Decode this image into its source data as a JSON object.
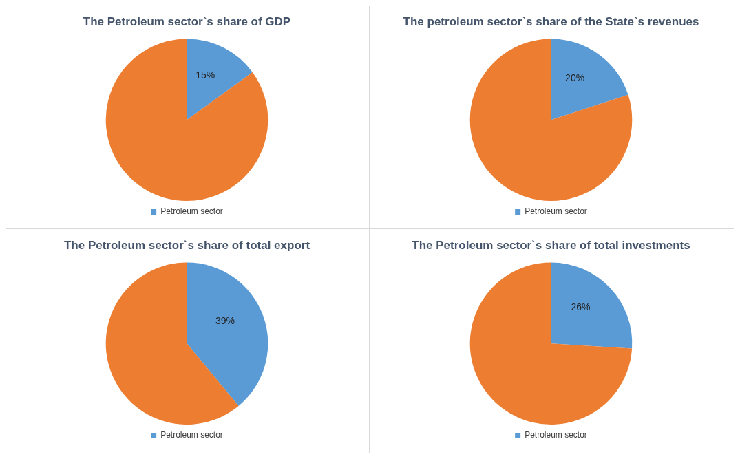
{
  "chart_data": [
    {
      "type": "pie",
      "title": "The Petroleum sector`s share of GDP",
      "categories": [
        "Petroleum sector",
        null
      ],
      "values": [
        15,
        85
      ],
      "colors": [
        "#5b9bd5",
        "#ed7d31"
      ],
      "value_labels": [
        "15%",
        null
      ],
      "legend": "bottom"
    },
    {
      "type": "pie",
      "title": "The petroleum sector`s share of the State`s revenues",
      "categories": [
        "Petroleum sector",
        null
      ],
      "values": [
        20,
        80
      ],
      "colors": [
        "#5b9bd5",
        "#ed7d31"
      ],
      "value_labels": [
        "20%",
        null
      ],
      "legend": "bottom"
    },
    {
      "type": "pie",
      "title": "The Petroleum sector`s share of total export",
      "categories": [
        "Petroleum sector",
        null
      ],
      "values": [
        39,
        61
      ],
      "colors": [
        "#5b9bd5",
        "#ed7d31"
      ],
      "value_labels": [
        "39%",
        null
      ],
      "legend": "bottom"
    },
    {
      "type": "pie",
      "title": "The Petroleum sector`s share of total investments",
      "categories": [
        "Petroleum sector",
        null
      ],
      "values": [
        26,
        74
      ],
      "colors": [
        "#5b9bd5",
        "#ed7d31"
      ],
      "value_labels": [
        "26%",
        null
      ],
      "legend": "bottom"
    }
  ]
}
